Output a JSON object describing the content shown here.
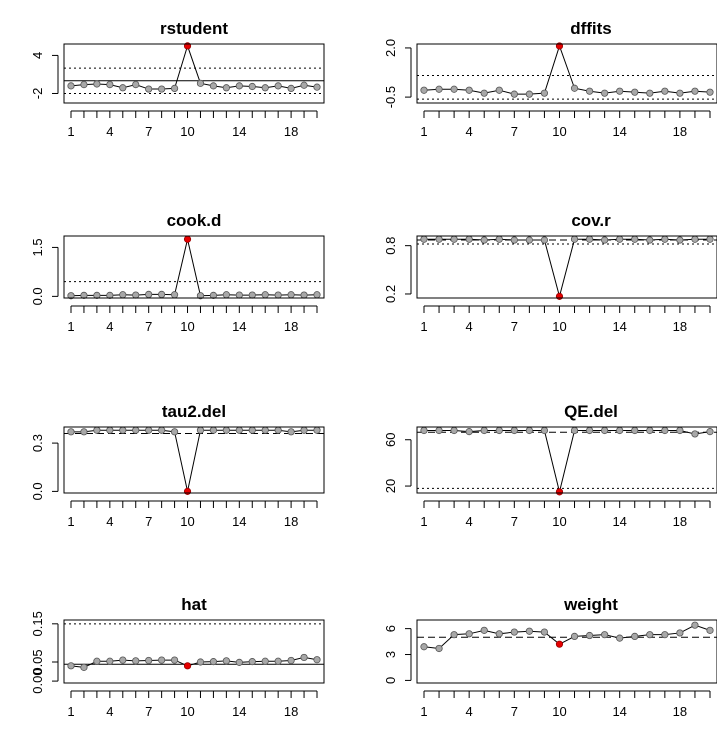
{
  "chart_data": [
    {
      "type": "line",
      "title": "rstudent",
      "x": [
        1,
        2,
        3,
        4,
        5,
        6,
        7,
        8,
        9,
        10,
        11,
        12,
        13,
        14,
        15,
        16,
        17,
        18,
        19,
        20
      ],
      "x_ticks": [
        "1",
        "4",
        "7",
        "10",
        "14",
        "18"
      ],
      "y": [
        -0.8,
        -0.6,
        -0.5,
        -0.6,
        -1.1,
        -0.6,
        -1.3,
        -1.3,
        -1.2,
        5.5,
        -0.4,
        -0.8,
        -1.1,
        -0.8,
        -0.9,
        -1.1,
        -0.8,
        -1.2,
        -0.7,
        -1.0
      ],
      "ylim": [
        -3.5,
        5.8
      ],
      "y_ticks": [
        "-2",
        "4"
      ],
      "y_tick_values": [
        -2,
        4
      ],
      "hlines": [
        {
          "y": 2.0,
          "style": "dotted"
        },
        {
          "y": -2.0,
          "style": "dotted"
        },
        {
          "y": 0.0,
          "style": "solid"
        }
      ],
      "highlight_index": 10
    },
    {
      "type": "line",
      "title": "dffits",
      "x": [
        1,
        2,
        3,
        4,
        5,
        6,
        7,
        8,
        9,
        10,
        11,
        12,
        13,
        14,
        15,
        16,
        17,
        18,
        19,
        20
      ],
      "x_ticks": [
        "1",
        "4",
        "7",
        "10",
        "14",
        "18"
      ],
      "y": [
        -0.15,
        -0.1,
        -0.1,
        -0.15,
        -0.3,
        -0.15,
        -0.35,
        -0.35,
        -0.3,
        2.1,
        -0.05,
        -0.2,
        -0.3,
        -0.2,
        -0.25,
        -0.3,
        -0.2,
        -0.3,
        -0.2,
        -0.25
      ],
      "ylim": [
        -0.8,
        2.2
      ],
      "y_ticks": [
        "-0.5",
        "2.0"
      ],
      "y_tick_values": [
        -0.5,
        2.0
      ],
      "hlines": [
        {
          "y": 0.6,
          "style": "dotted"
        },
        {
          "y": -0.6,
          "style": "dotted"
        }
      ],
      "highlight_index": 10
    },
    {
      "type": "line",
      "title": "cook.d",
      "x": [
        1,
        2,
        3,
        4,
        5,
        6,
        7,
        8,
        9,
        10,
        11,
        12,
        13,
        14,
        15,
        16,
        17,
        18,
        19,
        20
      ],
      "x_ticks": [
        "1",
        "4",
        "7",
        "10",
        "14",
        "18"
      ],
      "y": [
        0.02,
        0.03,
        0.03,
        0.03,
        0.05,
        0.04,
        0.06,
        0.06,
        0.05,
        1.75,
        0.02,
        0.03,
        0.05,
        0.04,
        0.04,
        0.05,
        0.04,
        0.05,
        0.04,
        0.05
      ],
      "ylim": [
        -0.05,
        1.85
      ],
      "y_ticks": [
        "0.0",
        "1.5"
      ],
      "y_tick_values": [
        0.0,
        1.5
      ],
      "hlines": [
        {
          "y": 0.45,
          "style": "dotted"
        }
      ],
      "highlight_index": 10
    },
    {
      "type": "line",
      "title": "cov.r",
      "x": [
        1,
        2,
        3,
        4,
        5,
        6,
        7,
        8,
        9,
        10,
        11,
        12,
        13,
        14,
        15,
        16,
        17,
        18,
        19,
        20
      ],
      "x_ticks": [
        "1",
        "4",
        "7",
        "10",
        "14",
        "18"
      ],
      "y": [
        0.88,
        0.88,
        0.88,
        0.88,
        0.87,
        0.88,
        0.87,
        0.87,
        0.87,
        0.17,
        0.88,
        0.88,
        0.87,
        0.88,
        0.88,
        0.87,
        0.88,
        0.87,
        0.88,
        0.88
      ],
      "ylim": [
        0.15,
        0.92
      ],
      "y_ticks": [
        "0.2",
        "0.8"
      ],
      "y_tick_values": [
        0.2,
        0.8
      ],
      "hlines": [
        {
          "y": 0.87,
          "style": "dashed"
        },
        {
          "y": 0.82,
          "style": "dotted"
        }
      ],
      "highlight_index": 10
    },
    {
      "type": "line",
      "title": "tau2.del",
      "x": [
        1,
        2,
        3,
        4,
        5,
        6,
        7,
        8,
        9,
        10,
        11,
        12,
        13,
        14,
        15,
        16,
        17,
        18,
        19,
        20
      ],
      "x_ticks": [
        "1",
        "4",
        "7",
        "10",
        "14",
        "18"
      ],
      "y": [
        0.37,
        0.37,
        0.38,
        0.38,
        0.38,
        0.38,
        0.38,
        0.38,
        0.37,
        0.0,
        0.38,
        0.38,
        0.38,
        0.38,
        0.38,
        0.38,
        0.38,
        0.37,
        0.38,
        0.38
      ],
      "ylim": [
        -0.01,
        0.4
      ],
      "y_ticks": [
        "0.0",
        "0.3"
      ],
      "y_tick_values": [
        0.0,
        0.3
      ],
      "hlines": [
        {
          "y": 0.36,
          "style": "dashed"
        }
      ],
      "highlight_index": 10
    },
    {
      "type": "line",
      "title": "QE.del",
      "x": [
        1,
        2,
        3,
        4,
        5,
        6,
        7,
        8,
        9,
        10,
        11,
        12,
        13,
        14,
        15,
        16,
        17,
        18,
        19,
        20
      ],
      "x_ticks": [
        "1",
        "4",
        "7",
        "10",
        "14",
        "18"
      ],
      "y": [
        68,
        68,
        68,
        67,
        68,
        68,
        68,
        68,
        68,
        15,
        68,
        68,
        68,
        68,
        68,
        68,
        68,
        68,
        65,
        67
      ],
      "ylim": [
        14,
        71
      ],
      "y_ticks": [
        "20",
        "60"
      ],
      "y_tick_values": [
        20,
        60
      ],
      "hlines": [
        {
          "y": 66.5,
          "style": "dashed"
        },
        {
          "y": 18,
          "style": "dotted"
        }
      ],
      "highlight_index": 10
    },
    {
      "type": "line",
      "title": "hat",
      "x": [
        1,
        2,
        3,
        4,
        5,
        6,
        7,
        8,
        9,
        10,
        11,
        12,
        13,
        14,
        15,
        16,
        17,
        18,
        19,
        20
      ],
      "x_ticks": [
        "1",
        "4",
        "7",
        "10",
        "14",
        "18"
      ],
      "y": [
        0.04,
        0.036,
        0.052,
        0.052,
        0.055,
        0.053,
        0.054,
        0.055,
        0.055,
        0.04,
        0.05,
        0.051,
        0.053,
        0.049,
        0.051,
        0.052,
        0.052,
        0.054,
        0.062,
        0.056
      ],
      "ylim": [
        -0.005,
        0.16
      ],
      "y_ticks": [
        "0.00",
        "0.05",
        "0.15"
      ],
      "y_tick_values": [
        0.0,
        0.05,
        0.15
      ],
      "hlines": [
        {
          "y": 0.15,
          "style": "dotted"
        },
        {
          "y": 0.044,
          "style": "solid"
        }
      ],
      "highlight_index": 10
    },
    {
      "type": "line",
      "title": "weight",
      "x": [
        1,
        2,
        3,
        4,
        5,
        6,
        7,
        8,
        9,
        10,
        11,
        12,
        13,
        14,
        15,
        16,
        17,
        18,
        19,
        20
      ],
      "x_ticks": [
        "1",
        "4",
        "7",
        "10",
        "14",
        "18"
      ],
      "y": [
        3.9,
        3.7,
        5.3,
        5.4,
        5.8,
        5.4,
        5.6,
        5.7,
        5.6,
        4.2,
        5.1,
        5.2,
        5.3,
        4.9,
        5.1,
        5.3,
        5.3,
        5.5,
        6.4,
        5.8
      ],
      "ylim": [
        -0.3,
        7.0
      ],
      "y_ticks": [
        "0",
        "3",
        "6"
      ],
      "y_tick_values": [
        0,
        3,
        6
      ],
      "hlines": [
        {
          "y": 5.0,
          "style": "dashed"
        }
      ],
      "highlight_index": 10
    }
  ],
  "colors": {
    "point_fill": "#a8a8a8",
    "highlight_fill": "#e60000",
    "line": "#000000"
  }
}
